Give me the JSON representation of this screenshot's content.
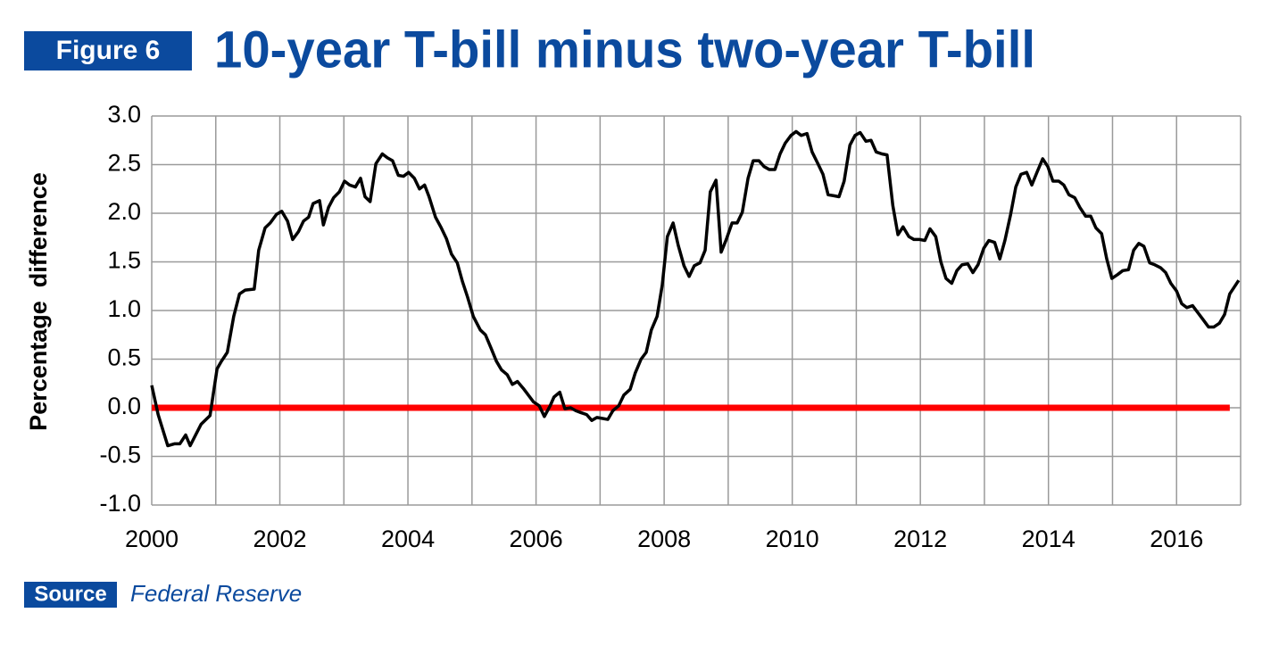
{
  "chart_data": {
    "type": "line",
    "figure_label": "Figure 6",
    "title": "10-year T-bill minus two-year T-bill",
    "y_label": "Percentage  difference",
    "source_label": "Source",
    "source": "Federal Reserve",
    "xlim": [
      2000,
      2017
    ],
    "xticks": [
      2000,
      2002,
      2004,
      2006,
      2008,
      2010,
      2012,
      2014,
      2016
    ],
    "xgrid": [
      2000,
      2001,
      2002,
      2003,
      2004,
      2005,
      2006,
      2007,
      2008,
      2009,
      2010,
      2011,
      2012,
      2013,
      2014,
      2015,
      2016,
      2017
    ],
    "ylim": [
      -1,
      3
    ],
    "yticks": [
      {
        "value": -1,
        "label": "-1.0"
      },
      {
        "value": -0.5,
        "label": "-0.5"
      },
      {
        "value": 0,
        "label": "0.0"
      },
      {
        "value": 0.5,
        "label": "0.5"
      },
      {
        "value": 1,
        "label": "1.0"
      },
      {
        "value": 1.5,
        "label": "1.5"
      },
      {
        "value": 2,
        "label": "2.0"
      },
      {
        "value": 2.5,
        "label": "2.5"
      },
      {
        "value": 3,
        "label": "3.0"
      }
    ],
    "grid": true,
    "reference_line": {
      "value": 0,
      "color": "#ff0000"
    },
    "series": [
      {
        "color": "#000000",
        "x": [
          2000.0,
          2000.1,
          2000.25,
          2000.36,
          2000.44,
          2000.53,
          2000.6,
          2000.77,
          2000.91,
          2001.02,
          2001.09,
          2001.18,
          2001.28,
          2001.37,
          2001.46,
          2001.6,
          2001.67,
          2001.77,
          2001.85,
          2001.95,
          2002.03,
          2002.12,
          2002.2,
          2002.29,
          2002.37,
          2002.45,
          2002.52,
          2002.62,
          2002.68,
          2002.76,
          2002.84,
          2002.93,
          2003.01,
          2003.09,
          2003.18,
          2003.26,
          2003.33,
          2003.41,
          2003.5,
          2003.6,
          2003.68,
          2003.76,
          2003.85,
          2003.93,
          2004.01,
          2004.1,
          2004.18,
          2004.26,
          2004.33,
          2004.43,
          2004.52,
          2004.6,
          2004.68,
          2004.77,
          2004.85,
          2004.93,
          2005.02,
          2005.13,
          2005.21,
          2005.3,
          2005.38,
          2005.46,
          2005.55,
          2005.63,
          2005.71,
          2005.8,
          2005.88,
          2005.96,
          2006.05,
          2006.13,
          2006.22,
          2006.28,
          2006.37,
          2006.45,
          2006.54,
          2006.62,
          2006.7,
          2006.79,
          2006.87,
          2006.95,
          2007.04,
          2007.12,
          2007.2,
          2007.29,
          2007.37,
          2007.47,
          2007.55,
          2007.64,
          2007.72,
          2007.8,
          2007.89,
          2007.97,
          2008.05,
          2008.14,
          2008.22,
          2008.31,
          2008.39,
          2008.47,
          2008.56,
          2008.64,
          2008.72,
          2008.81,
          2008.89,
          2008.97,
          2009.06,
          2009.14,
          2009.22,
          2009.31,
          2009.39,
          2009.48,
          2009.56,
          2009.64,
          2009.73,
          2009.81,
          2009.89,
          2009.98,
          2010.06,
          2010.14,
          2010.23,
          2010.31,
          2010.4,
          2010.48,
          2010.56,
          2010.65,
          2010.73,
          2010.81,
          2010.9,
          2010.98,
          2011.06,
          2011.15,
          2011.23,
          2011.31,
          2011.4,
          2011.48,
          2011.57,
          2011.65,
          2011.73,
          2011.82,
          2011.9,
          2011.99,
          2012.07,
          2012.15,
          2012.24,
          2012.32,
          2012.4,
          2012.49,
          2012.57,
          2012.65,
          2012.74,
          2012.82,
          2012.9,
          2012.99,
          2013.07,
          2013.16,
          2013.24,
          2013.32,
          2013.41,
          2013.49,
          2013.57,
          2013.66,
          2013.74,
          2013.82,
          2013.91,
          2013.99,
          2014.07,
          2014.16,
          2014.24,
          2014.32,
          2014.41,
          2014.49,
          2014.58,
          2014.66,
          2014.74,
          2014.83,
          2014.91,
          2014.99,
          2015.08,
          2015.16,
          2015.25,
          2015.33,
          2015.41,
          2015.49,
          2015.58,
          2015.66,
          2015.75,
          2015.83,
          2015.91,
          2016.0,
          2016.08,
          2016.16,
          2016.25,
          2016.33,
          2016.41,
          2016.5,
          2016.58,
          2016.67,
          2016.75,
          2016.83,
          2016.97
        ],
        "values": [
          0.23,
          -0.07,
          -0.39,
          -0.37,
          -0.37,
          -0.28,
          -0.39,
          -0.17,
          -0.08,
          0.4,
          0.48,
          0.57,
          0.94,
          1.17,
          1.21,
          1.22,
          1.62,
          1.85,
          1.9,
          1.99,
          2.02,
          1.92,
          1.73,
          1.81,
          1.92,
          1.96,
          2.1,
          2.13,
          1.88,
          2.06,
          2.16,
          2.22,
          2.33,
          2.29,
          2.27,
          2.36,
          2.17,
          2.12,
          2.51,
          2.61,
          2.57,
          2.54,
          2.39,
          2.38,
          2.42,
          2.36,
          2.25,
          2.29,
          2.17,
          1.96,
          1.85,
          1.74,
          1.58,
          1.49,
          1.3,
          1.14,
          0.94,
          0.8,
          0.75,
          0.61,
          0.48,
          0.39,
          0.34,
          0.24,
          0.27,
          0.2,
          0.13,
          0.06,
          0.02,
          -0.09,
          0.02,
          0.11,
          0.16,
          -0.01,
          0.0,
          -0.03,
          -0.05,
          -0.07,
          -0.13,
          -0.1,
          -0.11,
          -0.12,
          -0.03,
          0.02,
          0.13,
          0.19,
          0.36,
          0.5,
          0.57,
          0.8,
          0.94,
          1.26,
          1.76,
          1.9,
          1.67,
          1.46,
          1.35,
          1.46,
          1.49,
          1.62,
          2.22,
          2.34,
          1.6,
          1.73,
          1.9,
          1.9,
          2.01,
          2.36,
          2.54,
          2.54,
          2.48,
          2.45,
          2.45,
          2.61,
          2.72,
          2.8,
          2.84,
          2.8,
          2.82,
          2.63,
          2.51,
          2.4,
          2.19,
          2.18,
          2.17,
          2.33,
          2.7,
          2.8,
          2.83,
          2.74,
          2.75,
          2.63,
          2.61,
          2.6,
          2.08,
          1.78,
          1.86,
          1.76,
          1.73,
          1.73,
          1.72,
          1.84,
          1.76,
          1.5,
          1.33,
          1.28,
          1.41,
          1.47,
          1.48,
          1.39,
          1.47,
          1.64,
          1.72,
          1.7,
          1.53,
          1.72,
          1.99,
          2.27,
          2.4,
          2.42,
          2.29,
          2.42,
          2.56,
          2.48,
          2.33,
          2.33,
          2.29,
          2.19,
          2.16,
          2.06,
          1.97,
          1.97,
          1.85,
          1.79,
          1.53,
          1.33,
          1.37,
          1.41,
          1.42,
          1.62,
          1.69,
          1.66,
          1.49,
          1.47,
          1.44,
          1.39,
          1.28,
          1.2,
          1.07,
          1.03,
          1.05,
          0.98,
          0.91,
          0.83,
          0.83,
          0.87,
          0.96,
          1.17,
          1.31
        ]
      }
    ]
  }
}
